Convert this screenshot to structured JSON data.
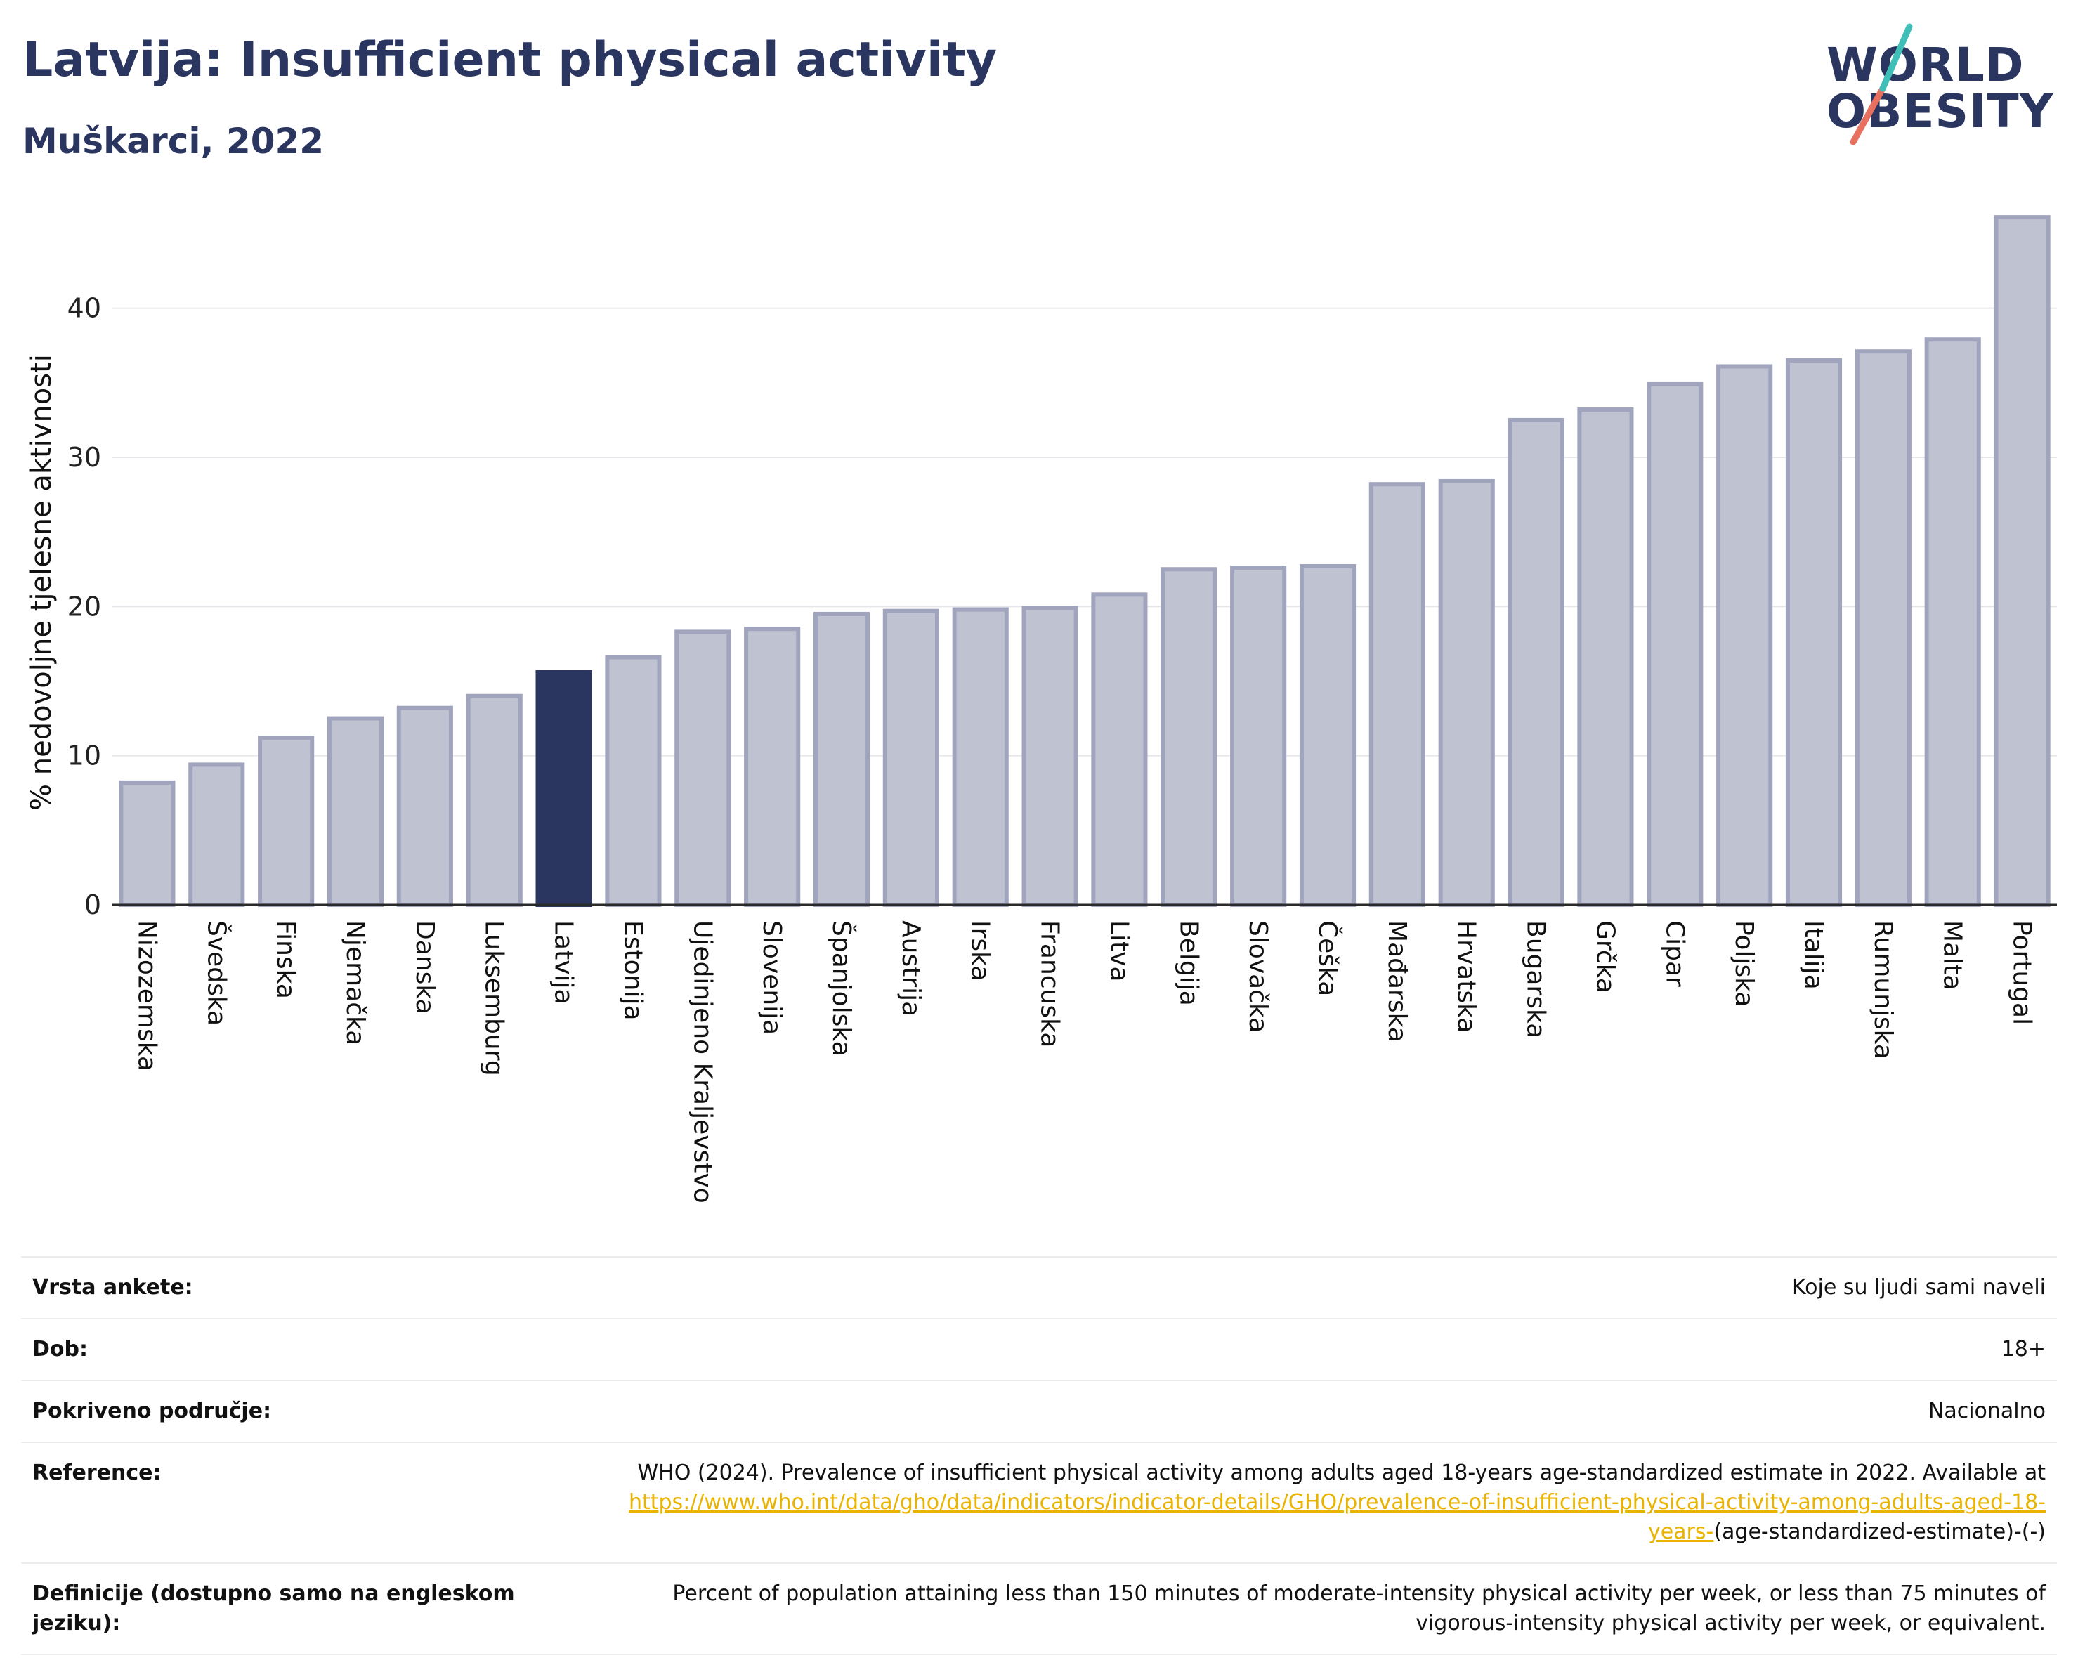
{
  "title": "Latvija: Insufficient physical activity",
  "subtitle": "Muškarci, 2022",
  "logo": {
    "line1": "WORLD",
    "line2": "OBESITY"
  },
  "colors": {
    "bar": "#bfc2d0",
    "bar_border": "#a0a5bd",
    "highlight": "#2a3560",
    "text": "#2a3560"
  },
  "chart_data": {
    "type": "bar",
    "categories": [
      "Nizozemska",
      "Švedska",
      "Finska",
      "Njemačka",
      "Danska",
      "Luksemburg",
      "Latvija",
      "Estonija",
      "Ujedinjeno Kraljevstvo",
      "Slovenija",
      "Španjolska",
      "Austrija",
      "Irska",
      "Francuska",
      "Litva",
      "Belgija",
      "Slovačka",
      "Češka",
      "Mađarska",
      "Hrvatska",
      "Bugarska",
      "Grčka",
      "Cipar",
      "Poljska",
      "Italija",
      "Rumunjska",
      "Malta",
      "Portugal"
    ],
    "values": [
      8.2,
      9.4,
      11.2,
      12.5,
      13.2,
      14.0,
      15.6,
      16.6,
      18.3,
      18.5,
      19.5,
      19.7,
      19.8,
      19.9,
      20.8,
      22.5,
      22.6,
      22.7,
      28.2,
      28.4,
      32.5,
      33.2,
      34.9,
      36.1,
      36.5,
      37.1,
      37.9,
      46.1
    ],
    "highlight": "Latvija",
    "ylabel": "% nedovoljne tjelesne aktivnosti",
    "xlabel": "",
    "ylim": [
      0,
      47
    ],
    "yticks": [
      0,
      10,
      20,
      30,
      40
    ],
    "grid": true
  },
  "info": [
    {
      "label": "Vrsta ankete:",
      "value": "Koje su ljudi sami naveli"
    },
    {
      "label": "Dob:",
      "value": "18+"
    },
    {
      "label": "Pokriveno područje:",
      "value": "Nacionalno"
    },
    {
      "label": "Reference:",
      "value": "WHO (2024). Prevalence of insufficient physical activity among adults aged 18-years age-standardized estimate in 2022. Available at",
      "link": "https://www.who.int/data/gho/data/indicators/indicator-details/GHO/prevalence-of-insufficient-physical-activity-among-adults-aged-18-years-",
      "suffix": "(age-standardized-estimate)-(-)"
    },
    {
      "label": "Definicije (dostupno samo na engleskom jeziku):",
      "value": "Percent of population attaining less than 150 minutes of moderate-intensity physical activity per week, or less than 75 minutes of vigorous-intensity physical activity per week, or equivalent."
    }
  ]
}
